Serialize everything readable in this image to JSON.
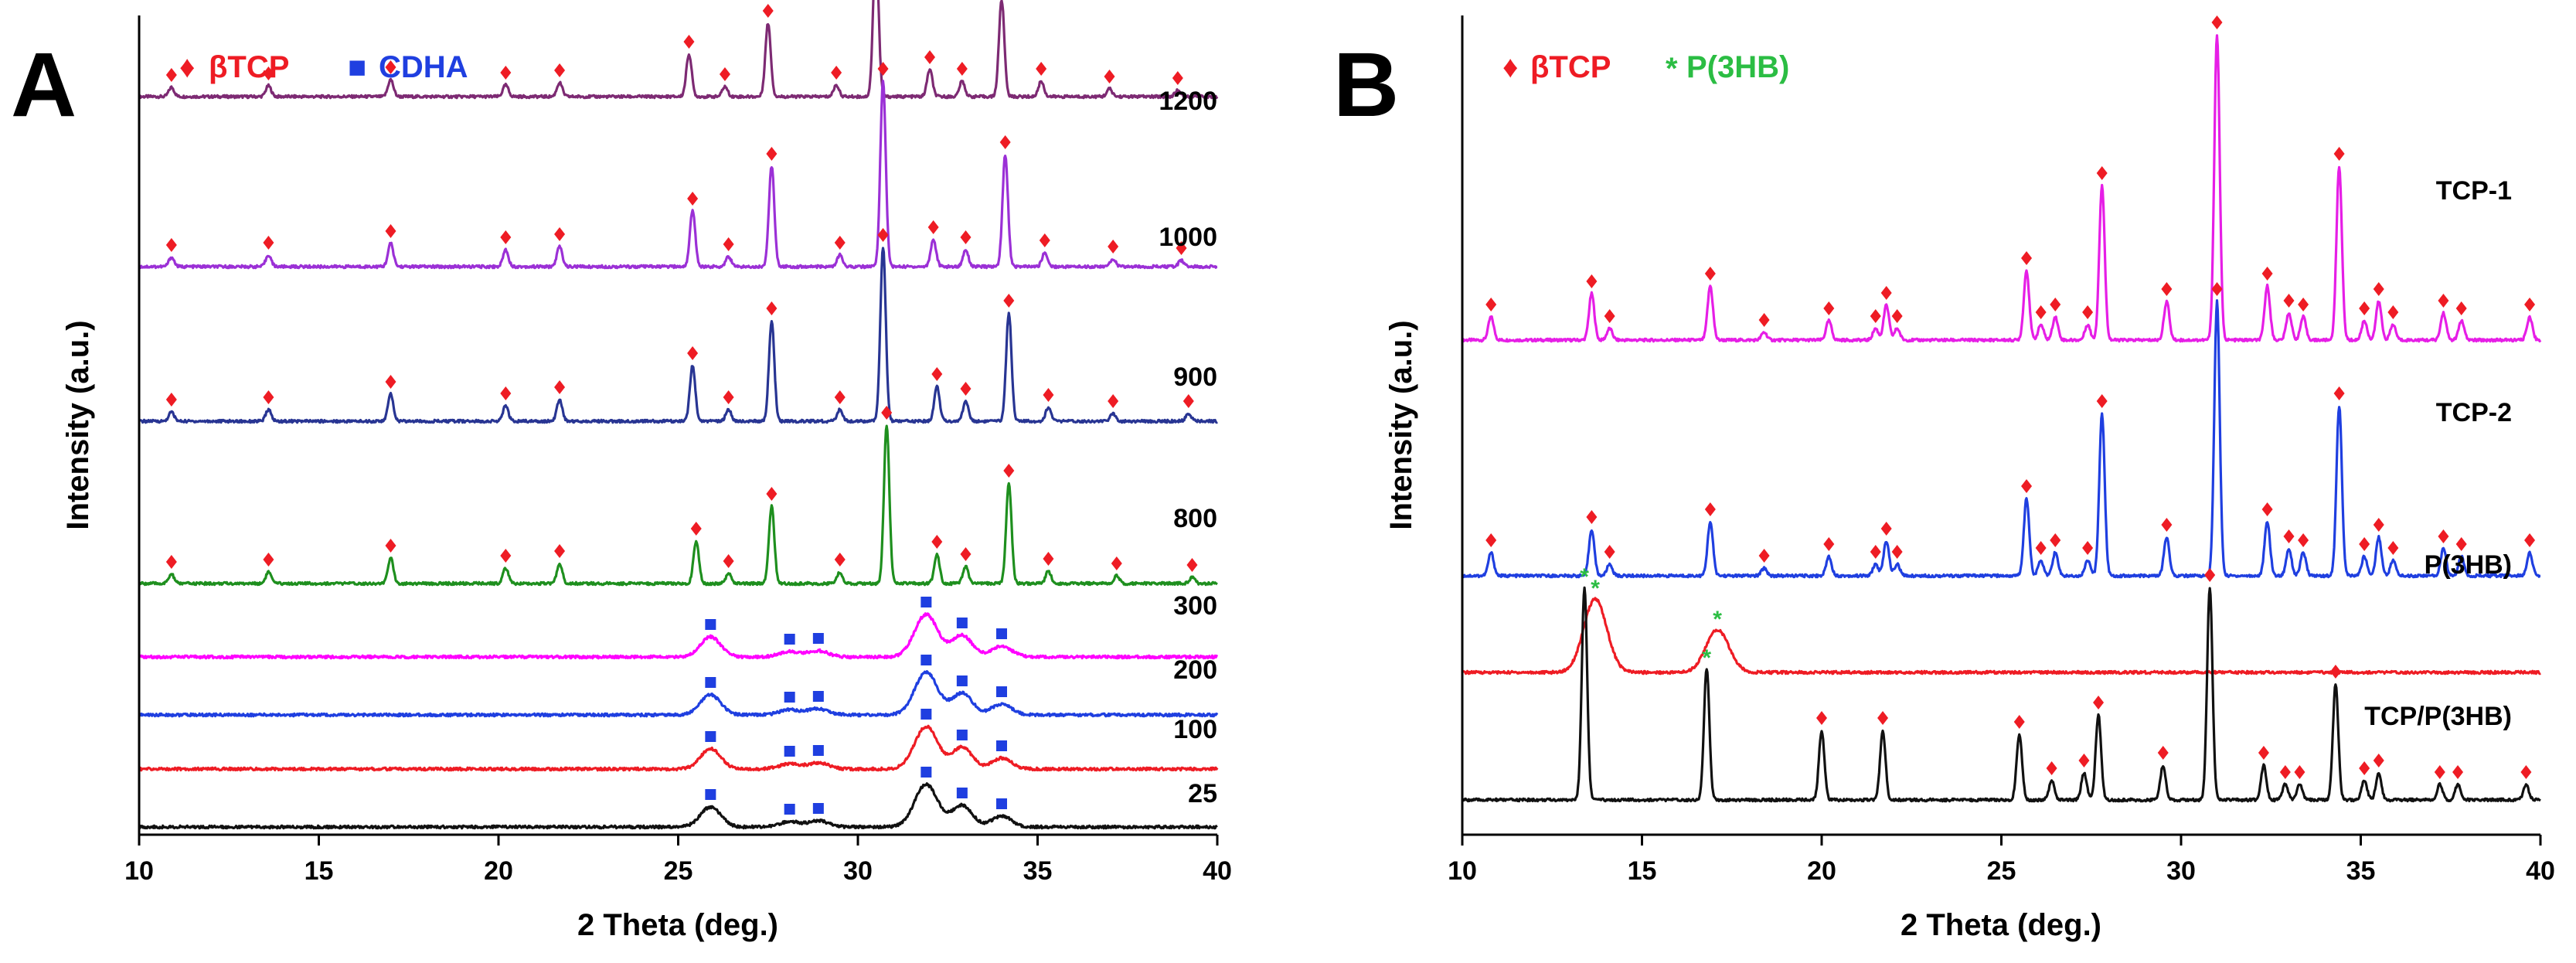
{
  "legend_markers": {
    "betaTCP": {
      "label": "βTCP",
      "symbol": "♦",
      "color": "#ee1c24"
    },
    "CDHA": {
      "label": "CDHA",
      "symbol": "■",
      "color": "#1f3fe0"
    },
    "P3HB": {
      "label": "P(3HB)",
      "symbol": "*",
      "color": "#2bbd43"
    }
  },
  "chart_data": [
    {
      "panel": "A",
      "type": "line",
      "title": "",
      "xlabel": "2 Theta (deg.)",
      "ylabel": "Intensity (a.u.)",
      "xlim": [
        10,
        40
      ],
      "xticks": [
        10,
        15,
        20,
        25,
        30,
        35,
        40
      ],
      "ylim": [
        0,
        10.6
      ],
      "yticks_shown": false,
      "grid": false,
      "legend": [
        {
          "label": "βTCP",
          "symbol": "♦",
          "color": "#ee1c24"
        },
        {
          "label": "CDHA",
          "symbol": "■",
          "color": "#1f3fe0"
        }
      ],
      "series": [
        {
          "name": "1200",
          "color": "#7d2a73",
          "baseline": 9.55,
          "peaks": [
            [
              10.9,
              0.12
            ],
            [
              13.6,
              0.14
            ],
            [
              17.0,
              0.22
            ],
            [
              20.2,
              0.15
            ],
            [
              21.7,
              0.18
            ],
            [
              25.3,
              0.55
            ],
            [
              26.3,
              0.13
            ],
            [
              27.5,
              0.95
            ],
            [
              29.4,
              0.15
            ],
            [
              30.5,
              1.95
            ],
            [
              32.0,
              0.35
            ],
            [
              32.9,
              0.2
            ],
            [
              34.0,
              1.25
            ],
            [
              35.1,
              0.2
            ],
            [
              37.0,
              0.1
            ],
            [
              38.9,
              0.08
            ]
          ],
          "markers": [
            {
              "type": "betaTCP",
              "x": [
                10.9,
                13.6,
                17.0,
                20.2,
                21.7,
                25.3,
                26.3,
                27.5,
                29.4,
                30.5,
                32.0,
                32.9,
                34.0,
                35.1,
                37.0,
                38.9
              ]
            }
          ]
        },
        {
          "name": "1000",
          "color": "#9b30d6",
          "baseline": 7.35,
          "peaks": [
            [
              10.9,
              0.12
            ],
            [
              13.6,
              0.15
            ],
            [
              17.0,
              0.3
            ],
            [
              20.2,
              0.22
            ],
            [
              21.7,
              0.26
            ],
            [
              25.4,
              0.72
            ],
            [
              26.4,
              0.13
            ],
            [
              27.6,
              1.3
            ],
            [
              29.5,
              0.15
            ],
            [
              30.7,
              2.4
            ],
            [
              32.1,
              0.35
            ],
            [
              33.0,
              0.22
            ],
            [
              34.1,
              1.45
            ],
            [
              35.2,
              0.18
            ],
            [
              37.1,
              0.1
            ],
            [
              39.0,
              0.08
            ]
          ],
          "markers": [
            {
              "type": "betaTCP",
              "x": [
                10.9,
                13.6,
                17.0,
                20.2,
                21.7,
                25.4,
                26.4,
                27.6,
                29.5,
                30.7,
                32.1,
                33.0,
                34.1,
                35.2,
                37.1,
                39.0
              ]
            }
          ]
        },
        {
          "name": "900",
          "color": "#283593",
          "baseline": 5.35,
          "peaks": [
            [
              10.9,
              0.12
            ],
            [
              13.6,
              0.15
            ],
            [
              17.0,
              0.35
            ],
            [
              20.2,
              0.2
            ],
            [
              21.7,
              0.28
            ],
            [
              25.4,
              0.72
            ],
            [
              26.4,
              0.15
            ],
            [
              27.6,
              1.3
            ],
            [
              29.5,
              0.15
            ],
            [
              30.7,
              2.25
            ],
            [
              32.2,
              0.45
            ],
            [
              33.0,
              0.26
            ],
            [
              34.2,
              1.4
            ],
            [
              35.3,
              0.18
            ],
            [
              37.1,
              0.1
            ],
            [
              39.2,
              0.1
            ]
          ],
          "markers": [
            {
              "type": "betaTCP",
              "x": [
                10.9,
                13.6,
                17.0,
                20.2,
                21.7,
                25.4,
                26.4,
                27.6,
                29.5,
                30.7,
                32.2,
                33.0,
                34.2,
                35.3,
                37.1,
                39.2
              ]
            }
          ]
        },
        {
          "name": "800",
          "color": "#1e8f1e",
          "baseline": 3.25,
          "peaks": [
            [
              10.9,
              0.12
            ],
            [
              13.6,
              0.15
            ],
            [
              17.0,
              0.33
            ],
            [
              20.2,
              0.2
            ],
            [
              21.7,
              0.26
            ],
            [
              25.5,
              0.55
            ],
            [
              26.4,
              0.13
            ],
            [
              27.6,
              1.0
            ],
            [
              29.5,
              0.15
            ],
            [
              30.8,
              2.05
            ],
            [
              32.2,
              0.38
            ],
            [
              33.0,
              0.22
            ],
            [
              34.2,
              1.3
            ],
            [
              35.3,
              0.16
            ],
            [
              37.2,
              0.1
            ],
            [
              39.3,
              0.08
            ]
          ],
          "markers": [
            {
              "type": "betaTCP",
              "x": [
                10.9,
                13.6,
                17.0,
                20.2,
                21.7,
                25.5,
                26.4,
                27.6,
                29.5,
                30.8,
                32.2,
                33.0,
                34.2,
                35.3,
                37.2,
                39.3
              ]
            }
          ]
        },
        {
          "name": "300",
          "color": "#ff00ff",
          "baseline": 2.3,
          "peaks": [
            [
              25.9,
              0.26
            ],
            [
              28.1,
              0.07
            ],
            [
              28.9,
              0.08
            ],
            [
              31.9,
              0.55
            ],
            [
              32.9,
              0.28
            ],
            [
              34.0,
              0.14
            ]
          ],
          "markers": [
            {
              "type": "CDHA",
              "x": [
                25.9,
                28.1,
                28.9,
                31.9,
                32.9,
                34.0
              ]
            }
          ]
        },
        {
          "name": "200",
          "color": "#1f3fe0",
          "baseline": 1.55,
          "peaks": [
            [
              25.9,
              0.26
            ],
            [
              28.1,
              0.07
            ],
            [
              28.9,
              0.08
            ],
            [
              31.9,
              0.55
            ],
            [
              32.9,
              0.28
            ],
            [
              34.0,
              0.14
            ]
          ],
          "markers": [
            {
              "type": "CDHA",
              "x": [
                25.9,
                28.1,
                28.9,
                31.9,
                32.9,
                34.0
              ]
            }
          ]
        },
        {
          "name": "100",
          "color": "#ee1c24",
          "baseline": 0.85,
          "peaks": [
            [
              25.9,
              0.26
            ],
            [
              28.1,
              0.07
            ],
            [
              28.9,
              0.08
            ],
            [
              31.9,
              0.55
            ],
            [
              32.9,
              0.28
            ],
            [
              34.0,
              0.14
            ]
          ],
          "markers": [
            {
              "type": "CDHA",
              "x": [
                25.9,
                28.1,
                28.9,
                31.9,
                32.9,
                34.0
              ]
            }
          ]
        },
        {
          "name": "25",
          "color": "#111111",
          "baseline": 0.1,
          "peaks": [
            [
              25.9,
              0.26
            ],
            [
              28.1,
              0.07
            ],
            [
              28.9,
              0.08
            ],
            [
              31.9,
              0.55
            ],
            [
              32.9,
              0.28
            ],
            [
              34.0,
              0.14
            ]
          ],
          "markers": [
            {
              "type": "CDHA",
              "x": [
                25.9,
                28.1,
                28.9,
                31.9,
                32.9,
                34.0
              ]
            }
          ]
        }
      ]
    },
    {
      "panel": "B",
      "type": "line",
      "title": "",
      "xlabel": "2 Theta (deg.)",
      "ylabel": "Intensity (a.u.)",
      "xlim": [
        10,
        40
      ],
      "xticks": [
        10,
        15,
        20,
        25,
        30,
        35,
        40
      ],
      "ylim": [
        0,
        10.6
      ],
      "yticks_shown": false,
      "grid": false,
      "legend": [
        {
          "label": "βTCP",
          "symbol": "♦",
          "color": "#ee1c24"
        },
        {
          "label": "P(3HB)",
          "symbol": "*",
          "color": "#2bbd43"
        }
      ],
      "series": [
        {
          "name": "TCP-1",
          "color": "#e61ee6",
          "baseline": 6.4,
          "peaks": [
            [
              10.8,
              0.3
            ],
            [
              13.6,
              0.6
            ],
            [
              14.1,
              0.15
            ],
            [
              16.9,
              0.7
            ],
            [
              18.4,
              0.1
            ],
            [
              20.2,
              0.25
            ],
            [
              21.5,
              0.15
            ],
            [
              21.8,
              0.45
            ],
            [
              22.1,
              0.15
            ],
            [
              25.7,
              0.9
            ],
            [
              26.1,
              0.2
            ],
            [
              26.5,
              0.3
            ],
            [
              27.4,
              0.2
            ],
            [
              27.8,
              2.0
            ],
            [
              29.6,
              0.5
            ],
            [
              31.0,
              3.95
            ],
            [
              32.4,
              0.7
            ],
            [
              33.0,
              0.35
            ],
            [
              33.4,
              0.3
            ],
            [
              34.4,
              2.25
            ],
            [
              35.1,
              0.25
            ],
            [
              35.5,
              0.5
            ],
            [
              35.9,
              0.2
            ],
            [
              37.3,
              0.35
            ],
            [
              37.8,
              0.25
            ],
            [
              39.7,
              0.3
            ]
          ],
          "markers": [
            {
              "type": "betaTCP",
              "x": [
                10.8,
                13.6,
                14.1,
                16.9,
                18.4,
                20.2,
                21.5,
                21.8,
                22.1,
                25.7,
                26.1,
                26.5,
                27.4,
                27.8,
                29.6,
                31.0,
                32.4,
                33.0,
                33.4,
                34.4,
                35.1,
                35.5,
                35.9,
                37.3,
                37.8,
                39.7
              ]
            }
          ]
        },
        {
          "name": "TCP-2",
          "color": "#1f3fe0",
          "baseline": 3.35,
          "peaks": [
            [
              10.8,
              0.3
            ],
            [
              13.6,
              0.6
            ],
            [
              14.1,
              0.15
            ],
            [
              16.9,
              0.7
            ],
            [
              18.4,
              0.1
            ],
            [
              20.2,
              0.25
            ],
            [
              21.5,
              0.15
            ],
            [
              21.8,
              0.45
            ],
            [
              22.1,
              0.15
            ],
            [
              25.7,
              1.0
            ],
            [
              26.1,
              0.2
            ],
            [
              26.5,
              0.3
            ],
            [
              27.4,
              0.2
            ],
            [
              27.8,
              2.1
            ],
            [
              29.6,
              0.5
            ],
            [
              31.0,
              3.55
            ],
            [
              32.4,
              0.7
            ],
            [
              33.0,
              0.35
            ],
            [
              33.4,
              0.3
            ],
            [
              34.4,
              2.2
            ],
            [
              35.1,
              0.25
            ],
            [
              35.5,
              0.5
            ],
            [
              35.9,
              0.2
            ],
            [
              37.3,
              0.35
            ],
            [
              37.8,
              0.25
            ],
            [
              39.7,
              0.3
            ]
          ],
          "markers": [
            {
              "type": "betaTCP",
              "x": [
                10.8,
                13.6,
                14.1,
                16.9,
                18.4,
                20.2,
                21.5,
                21.8,
                22.1,
                25.7,
                26.1,
                26.5,
                27.4,
                27.8,
                29.6,
                31.0,
                32.4,
                33.0,
                33.4,
                34.4,
                35.1,
                35.5,
                35.9,
                37.3,
                37.8,
                39.7
              ]
            }
          ]
        },
        {
          "name": "P(3HB)",
          "color": "#ee1c24",
          "baseline": 2.1,
          "peaks": [
            [
              13.7,
              0.95
            ],
            [
              17.1,
              0.55
            ]
          ],
          "markers": [
            {
              "type": "P3HB",
              "x": [
                13.7,
                17.1
              ]
            }
          ]
        },
        {
          "name": "TCP/P(3HB)",
          "color": "#111111",
          "baseline": 0.45,
          "peaks": [
            [
              13.4,
              2.75
            ],
            [
              16.8,
              1.7
            ],
            [
              20.0,
              0.9
            ],
            [
              21.7,
              0.9
            ],
            [
              25.5,
              0.85
            ],
            [
              26.4,
              0.25
            ],
            [
              27.3,
              0.35
            ],
            [
              27.7,
              1.1
            ],
            [
              29.5,
              0.45
            ],
            [
              30.8,
              2.75
            ],
            [
              32.3,
              0.45
            ],
            [
              32.9,
              0.2
            ],
            [
              33.3,
              0.2
            ],
            [
              34.3,
              1.5
            ],
            [
              35.1,
              0.25
            ],
            [
              35.5,
              0.35
            ],
            [
              37.2,
              0.2
            ],
            [
              37.7,
              0.2
            ],
            [
              39.6,
              0.2
            ]
          ],
          "markers": [
            {
              "type": "P3HB",
              "x": [
                13.4,
                16.8
              ]
            },
            {
              "type": "betaTCP",
              "x": [
                20.0,
                21.7,
                25.5,
                26.4,
                27.3,
                27.7,
                29.5,
                30.8,
                32.3,
                32.9,
                33.3,
                34.3,
                35.1,
                35.5,
                37.2,
                37.7,
                39.6
              ]
            }
          ]
        }
      ]
    }
  ]
}
